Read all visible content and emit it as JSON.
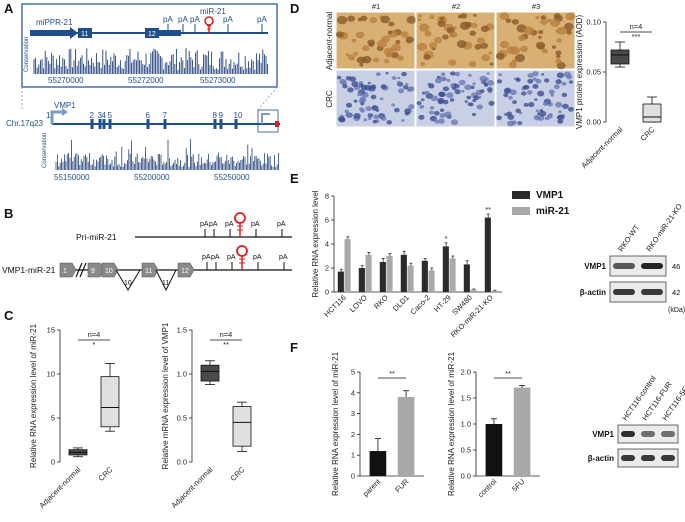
{
  "panels": {
    "a": {
      "label": "A",
      "inset": {
        "mipr_label": "miPPR-21",
        "exon_labels": [
          "11",
          "12"
        ],
        "pa_labels": [
          "pA",
          "pA",
          "pA",
          "pA",
          "pA"
        ],
        "mir_label": "miR-21",
        "conservation_label": "Conservation",
        "coords": [
          "55270000",
          "55272000",
          "55273000"
        ]
      },
      "main": {
        "chr_label": "Chr.17q23",
        "gene_label": "VMP1",
        "start_label": "1",
        "exon_numbers": [
          "2",
          "3",
          "4",
          "5",
          "6",
          "7",
          "8",
          "9",
          "10"
        ],
        "conservation_label": "Conservation",
        "coords": [
          "55150000",
          "55200000",
          "55250000"
        ]
      }
    },
    "b": {
      "label": "B",
      "pri_label": "Pri-miR-21",
      "vmp_label": "VMP1-miR-21",
      "exons": [
        "1",
        "9",
        "10",
        "11",
        "12"
      ],
      "loop_labels": [
        "10",
        "11"
      ],
      "pa_labels": [
        "pA",
        "pA",
        "pA",
        "pA",
        "pA"
      ]
    },
    "c": {
      "label": "C",
      "charts": [
        {
          "ylabel": "Relative RNA expression level of miR-21",
          "n_label": "n=4",
          "sig": "*",
          "categories": [
            "Adjacent-normal",
            "CRC"
          ],
          "ylim": [
            0,
            15
          ],
          "ticks": [
            "0",
            "5",
            "10",
            "15"
          ],
          "boxes": [
            {
              "min": 0.6,
              "q1": 0.8,
              "median": 1.1,
              "q3": 1.4,
              "max": 1.6
            },
            {
              "min": 3.5,
              "q1": 4.0,
              "median": 6.2,
              "q3": 9.7,
              "max": 11.2
            }
          ]
        },
        {
          "ylabel": "Relative mRNA expression level of VMP1",
          "n_label": "n=4",
          "sig": "**",
          "categories": [
            "Adjacent-normal",
            "CRC"
          ],
          "ylim": [
            0,
            1.5
          ],
          "ticks": [
            "0.0",
            "0.5",
            "1.0",
            "1.5"
          ],
          "boxes": [
            {
              "min": 0.88,
              "q1": 0.92,
              "median": 1.03,
              "q3": 1.1,
              "max": 1.15
            },
            {
              "min": 0.12,
              "q1": 0.18,
              "median": 0.45,
              "q3": 0.63,
              "max": 0.68
            }
          ]
        }
      ]
    },
    "d": {
      "label": "D",
      "col_labels": [
        "#1",
        "#2",
        "#3"
      ],
      "row_labels": [
        "Adjacent-normal",
        "CRC"
      ],
      "chart": {
        "ylabel": "VMP1 protein expression (AOD)",
        "n_label": "n=4",
        "sig": "***",
        "categories": [
          "Adjacent-normal",
          "CRC"
        ],
        "ylim": [
          0,
          0.1
        ],
        "ticks": [
          "0.00",
          "0.05",
          "0.10"
        ],
        "boxes": [
          {
            "min": 0.055,
            "q1": 0.058,
            "median": 0.067,
            "q3": 0.072,
            "max": 0.08
          },
          {
            "min": 0.0,
            "q1": 0.0,
            "median": 0.005,
            "q3": 0.018,
            "max": 0.025
          }
        ]
      }
    },
    "e": {
      "label": "E",
      "chart_data": {
        "type": "bar",
        "ylabel": "Relative RNA expression level",
        "categories": [
          "HCT116",
          "LOVO",
          "RKO",
          "DLD1",
          "Caco-2",
          "HT-29",
          "SW480",
          "RKO-miR-21-KO"
        ],
        "series": [
          {
            "name": "VMP1",
            "color": "#2b2b2b",
            "values": [
              1.7,
              2.0,
              2.5,
              3.1,
              2.6,
              3.8,
              2.3,
              6.2
            ],
            "errors": [
              0.2,
              0.2,
              0.3,
              0.3,
              0.2,
              0.3,
              0.3,
              0.3
            ]
          },
          {
            "name": "miR-21",
            "color": "#a9a9a9",
            "values": [
              4.4,
              3.1,
              3.0,
              2.2,
              1.8,
              2.8,
              0.2,
              0.1
            ],
            "errors": [
              0.2,
              0.2,
              0.2,
              0.2,
              0.2,
              0.2,
              0.05,
              0.05
            ]
          }
        ],
        "sig": [
          {
            "index": 5,
            "text": "*"
          },
          {
            "index": 7,
            "text": "**"
          }
        ],
        "ylim": [
          0,
          8
        ],
        "ticks": [
          "0",
          "2",
          "4",
          "6",
          "8"
        ]
      },
      "blot": {
        "lanes": [
          "RKO-WT",
          "RKO-miR-21-KO"
        ],
        "rows": [
          "VMP1",
          "β-actin"
        ],
        "markers": [
          "46",
          "42"
        ],
        "unit": "(kDa)"
      }
    },
    "f": {
      "label": "F",
      "charts": [
        {
          "ylabel": "Relative RNA expression level of miR-21",
          "categories": [
            "parent",
            "FUR"
          ],
          "values": [
            1.2,
            3.8
          ],
          "errors": [
            0.6,
            0.3
          ],
          "colors": [
            "#111111",
            "#a9a9a9"
          ],
          "sig": "**",
          "ylim": [
            0,
            5
          ],
          "ticks": [
            "0",
            "1",
            "2",
            "3",
            "4",
            "5"
          ]
        },
        {
          "ylabel": "Relative RNA expression level of miR-21",
          "categories": [
            "control",
            "5FU"
          ],
          "values": [
            1.0,
            1.7
          ],
          "errors": [
            0.1,
            0.04
          ],
          "colors": [
            "#111111",
            "#a9a9a9"
          ],
          "sig": "**",
          "ylim": [
            0,
            2.0
          ],
          "ticks": [
            "0.0",
            "0.5",
            "1.0",
            "1.5",
            "2.0"
          ]
        }
      ],
      "blot": {
        "lanes": [
          "HCT116-control",
          "HCT116-FUR",
          "HCT116-5FU"
        ],
        "rows": [
          "VMP1",
          "β-actin"
        ]
      }
    }
  }
}
